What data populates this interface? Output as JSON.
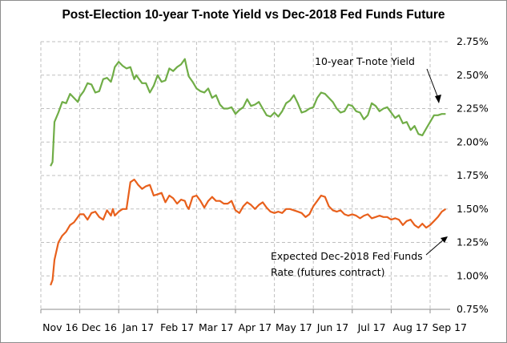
{
  "chart_data": {
    "type": "line",
    "title": "Post-Election 10-year T-note Yield vs Dec-2018 Fed Funds Future",
    "xlabel": "",
    "ylabel": "",
    "ylim": [
      0.75,
      2.75
    ],
    "y_unit": "%",
    "y_ticks": [
      "0.75%",
      "1.00%",
      "1.25%",
      "1.50%",
      "1.75%",
      "2.00%",
      "2.25%",
      "2.50%",
      "2.75%"
    ],
    "y_tick_values": [
      0.75,
      1.0,
      1.25,
      1.5,
      1.75,
      2.0,
      2.25,
      2.5,
      2.75
    ],
    "x_ticks": [
      "Nov 16",
      "Dec 16",
      "Jan 17",
      "Feb 17",
      "Mar 17",
      "Apr 17",
      "May 17",
      "Jun 17",
      "Jul 17",
      "Aug 17",
      "Sep 17"
    ],
    "x_range_months": [
      0,
      10.5
    ],
    "grid": true,
    "y_axis_side": "right",
    "series": [
      {
        "name": "10-year T-note Yield",
        "color": "#70ad47",
        "x": [
          0.25,
          0.3,
          0.35,
          0.45,
          0.55,
          0.65,
          0.75,
          0.85,
          0.95,
          1.0,
          1.1,
          1.2,
          1.3,
          1.4,
          1.5,
          1.6,
          1.7,
          1.8,
          1.85,
          1.9,
          2.0,
          2.1,
          2.2,
          2.3,
          2.4,
          2.45,
          2.5,
          2.6,
          2.7,
          2.8,
          2.9,
          3.0,
          3.1,
          3.2,
          3.3,
          3.4,
          3.5,
          3.6,
          3.7,
          3.75,
          3.8,
          3.9,
          4.0,
          4.1,
          4.2,
          4.3,
          4.4,
          4.5,
          4.6,
          4.7,
          4.8,
          4.9,
          5.0,
          5.1,
          5.2,
          5.3,
          5.4,
          5.5,
          5.6,
          5.7,
          5.8,
          5.9,
          6.0,
          6.1,
          6.2,
          6.3,
          6.4,
          6.5,
          6.6,
          6.7,
          6.8,
          6.9,
          7.0,
          7.1,
          7.2,
          7.3,
          7.4,
          7.5,
          7.6,
          7.7,
          7.8,
          7.9,
          8.0,
          8.1,
          8.2,
          8.3,
          8.4,
          8.5,
          8.6,
          8.7,
          8.8,
          8.9,
          9.0,
          9.1,
          9.2,
          9.3,
          9.4,
          9.5,
          9.6,
          9.7,
          9.8,
          9.9,
          10.0,
          10.1,
          10.2,
          10.3,
          10.4
        ],
        "values": [
          1.82,
          1.85,
          2.15,
          2.22,
          2.3,
          2.29,
          2.36,
          2.33,
          2.3,
          2.34,
          2.38,
          2.44,
          2.43,
          2.37,
          2.38,
          2.47,
          2.48,
          2.45,
          2.5,
          2.56,
          2.6,
          2.57,
          2.55,
          2.56,
          2.47,
          2.5,
          2.48,
          2.44,
          2.44,
          2.37,
          2.42,
          2.5,
          2.45,
          2.46,
          2.55,
          2.53,
          2.56,
          2.58,
          2.62,
          2.55,
          2.49,
          2.45,
          2.4,
          2.38,
          2.37,
          2.4,
          2.33,
          2.35,
          2.28,
          2.25,
          2.25,
          2.26,
          2.21,
          2.24,
          2.26,
          2.32,
          2.27,
          2.28,
          2.3,
          2.25,
          2.2,
          2.19,
          2.22,
          2.19,
          2.23,
          2.29,
          2.31,
          2.35,
          2.29,
          2.22,
          2.23,
          2.25,
          2.26,
          2.33,
          2.37,
          2.36,
          2.33,
          2.3,
          2.25,
          2.22,
          2.23,
          2.28,
          2.27,
          2.23,
          2.22,
          2.17,
          2.2,
          2.29,
          2.27,
          2.23,
          2.25,
          2.26,
          2.22,
          2.18,
          2.2,
          2.14,
          2.15,
          2.09,
          2.12,
          2.06,
          2.05,
          2.1,
          2.15,
          2.2,
          2.2,
          2.21,
          2.21
        ]
      },
      {
        "name": "Expected Dec-2018 Fed Funds Rate (futures contract)",
        "color": "#e8601c",
        "x": [
          0.25,
          0.3,
          0.35,
          0.45,
          0.55,
          0.65,
          0.75,
          0.85,
          0.95,
          1.0,
          1.1,
          1.2,
          1.3,
          1.4,
          1.5,
          1.6,
          1.7,
          1.8,
          1.85,
          1.9,
          2.0,
          2.1,
          2.2,
          2.3,
          2.4,
          2.45,
          2.5,
          2.6,
          2.7,
          2.8,
          2.9,
          3.0,
          3.1,
          3.2,
          3.3,
          3.4,
          3.5,
          3.6,
          3.7,
          3.75,
          3.8,
          3.9,
          4.0,
          4.1,
          4.2,
          4.3,
          4.4,
          4.5,
          4.6,
          4.7,
          4.8,
          4.9,
          5.0,
          5.1,
          5.2,
          5.3,
          5.4,
          5.5,
          5.6,
          5.7,
          5.8,
          5.9,
          6.0,
          6.1,
          6.2,
          6.3,
          6.4,
          6.5,
          6.6,
          6.7,
          6.8,
          6.9,
          7.0,
          7.1,
          7.2,
          7.3,
          7.4,
          7.5,
          7.6,
          7.7,
          7.8,
          7.9,
          8.0,
          8.1,
          8.2,
          8.3,
          8.4,
          8.5,
          8.6,
          8.7,
          8.8,
          8.9,
          9.0,
          9.1,
          9.2,
          9.3,
          9.4,
          9.5,
          9.6,
          9.7,
          9.8,
          9.9,
          10.0,
          10.1,
          10.2,
          10.3,
          10.4
        ],
        "values": [
          0.93,
          0.97,
          1.12,
          1.25,
          1.3,
          1.33,
          1.38,
          1.4,
          1.44,
          1.46,
          1.46,
          1.42,
          1.47,
          1.48,
          1.44,
          1.42,
          1.49,
          1.45,
          1.5,
          1.45,
          1.48,
          1.5,
          1.5,
          1.7,
          1.72,
          1.7,
          1.68,
          1.65,
          1.67,
          1.68,
          1.6,
          1.61,
          1.62,
          1.55,
          1.6,
          1.58,
          1.54,
          1.57,
          1.56,
          1.52,
          1.5,
          1.59,
          1.6,
          1.56,
          1.51,
          1.56,
          1.59,
          1.56,
          1.56,
          1.54,
          1.54,
          1.56,
          1.49,
          1.47,
          1.52,
          1.55,
          1.53,
          1.5,
          1.53,
          1.55,
          1.51,
          1.48,
          1.47,
          1.48,
          1.47,
          1.5,
          1.5,
          1.49,
          1.48,
          1.47,
          1.44,
          1.46,
          1.52,
          1.56,
          1.6,
          1.59,
          1.52,
          1.49,
          1.48,
          1.49,
          1.46,
          1.45,
          1.46,
          1.45,
          1.43,
          1.45,
          1.46,
          1.43,
          1.44,
          1.45,
          1.44,
          1.44,
          1.42,
          1.43,
          1.42,
          1.38,
          1.41,
          1.42,
          1.38,
          1.36,
          1.39,
          1.36,
          1.38,
          1.41,
          1.44,
          1.48,
          1.5
        ]
      }
    ],
    "annotations": [
      {
        "text": "10-year T-note Yield",
        "points_to": "10-year T-note Yield series near Sep 17"
      },
      {
        "text_lines": [
          "Expected Dec-2018 Fed Funds",
          "Rate (futures contract)"
        ],
        "points_to": "Fed Funds series near Sep 17"
      }
    ]
  }
}
